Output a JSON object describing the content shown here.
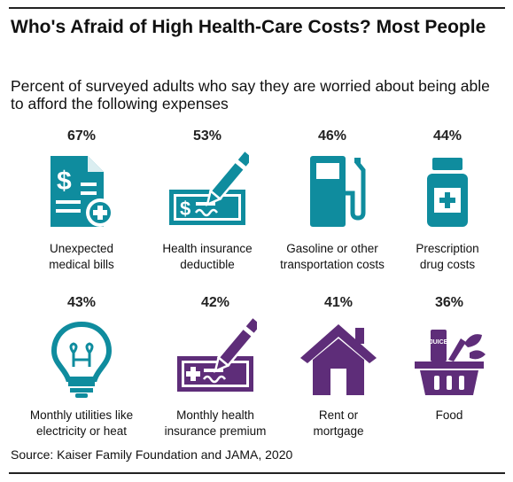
{
  "title": "Who's Afraid of High Health-Care Costs? Most People",
  "subtitle": "Percent of surveyed adults who say they are worried about being able to afford the following expenses",
  "source": "Source: Kaiser Family Foundation and JAMA, 2020",
  "colors": {
    "teal": "#0f8c9e",
    "purple": "#5e2d79"
  },
  "chart_data": {
    "type": "table",
    "title": "Who's Afraid of High Health-Care Costs? Most People",
    "subtitle": "Percent of surveyed adults who say they are worried about being able to afford the following expenses",
    "unit": "%",
    "items": [
      {
        "pct": "67%",
        "value": 67,
        "label1": "Unexpected",
        "label2": "medical bills",
        "icon": "medical-bill-icon",
        "color": "teal"
      },
      {
        "pct": "53%",
        "value": 53,
        "label1": "Health insurance",
        "label2": "deductible",
        "icon": "check-pen-icon",
        "color": "teal"
      },
      {
        "pct": "46%",
        "value": 46,
        "label1": "Gasoline or other",
        "label2": "transportation costs",
        "icon": "gas-pump-icon",
        "color": "teal"
      },
      {
        "pct": "44%",
        "value": 44,
        "label1": "Prescription",
        "label2": "drug costs",
        "icon": "pill-bottle-icon",
        "color": "teal"
      },
      {
        "pct": "43%",
        "value": 43,
        "label1": "Monthly utilities like",
        "label2": "electricity or heat",
        "icon": "light-bulb-icon",
        "color": "teal"
      },
      {
        "pct": "42%",
        "value": 42,
        "label1": "Monthly health",
        "label2": "insurance premium",
        "icon": "check-pen-plus-icon",
        "color": "purple"
      },
      {
        "pct": "41%",
        "value": 41,
        "label1": "Rent or",
        "label2": "mortgage",
        "icon": "house-icon",
        "color": "purple"
      },
      {
        "pct": "36%",
        "value": 36,
        "label1": "Food",
        "label2": "",
        "icon": "grocery-basket-icon",
        "color": "purple"
      }
    ]
  },
  "icon_text": {
    "juice": "JUICE"
  }
}
